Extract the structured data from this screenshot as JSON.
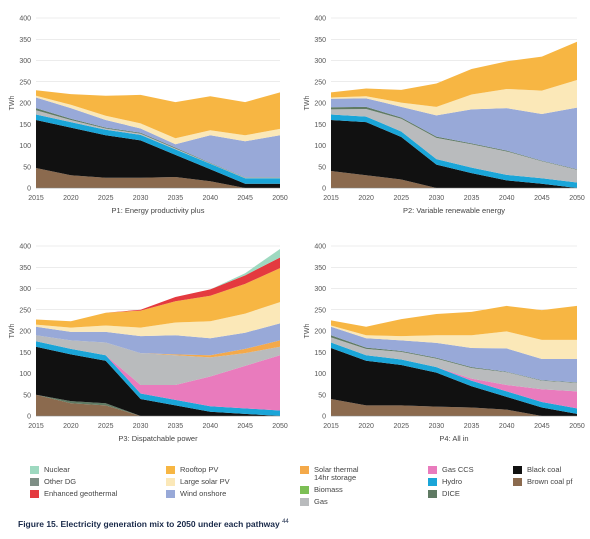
{
  "chart_data": [
    {
      "type": "area",
      "title": "P1: Energy productivity plus",
      "xlabel": "P1: Energy productivity plus",
      "ylabel": "TWh",
      "ylim": [
        0,
        400
      ],
      "yticks": [
        "0",
        "50",
        "100",
        "150",
        "200",
        "250",
        "300",
        "350",
        "400"
      ],
      "xticks": [
        "2015",
        "2020",
        "2025",
        "2030",
        "2035",
        "2040",
        "2045",
        "2050"
      ],
      "x": [
        2015,
        2020,
        2025,
        2030,
        2035,
        2040,
        2045,
        2050
      ],
      "series": [
        {
          "name": "Brown coal pf",
          "color": "#8b6a4e",
          "values": [
            47,
            30,
            24,
            24,
            26,
            16,
            0,
            0
          ]
        },
        {
          "name": "Black coal",
          "color": "#111111",
          "values": [
            113,
            112,
            100,
            88,
            52,
            28,
            10,
            10
          ]
        },
        {
          "name": "Hydro",
          "color": "#1aa5d8",
          "values": [
            13,
            13,
            13,
            13,
            13,
            13,
            13,
            13
          ]
        },
        {
          "name": "Gas",
          "color": "#b9bbbd",
          "values": [
            10,
            5,
            3,
            3,
            2,
            1,
            1,
            1
          ]
        },
        {
          "name": "DICE",
          "color": "#5f7a63",
          "values": [
            5,
            3,
            2,
            2,
            2,
            1,
            1,
            1
          ]
        },
        {
          "name": "Wind onshore",
          "color": "#98a9d8",
          "values": [
            25,
            25,
            18,
            10,
            8,
            65,
            85,
            99
          ]
        },
        {
          "name": "Large solar PV",
          "color": "#fbe8b8",
          "values": [
            4,
            8,
            10,
            12,
            14,
            12,
            14,
            15
          ]
        },
        {
          "name": "Rooftop PV",
          "color": "#f7b643",
          "values": [
            13,
            25,
            47,
            67,
            85,
            80,
            78,
            86
          ]
        }
      ]
    },
    {
      "type": "area",
      "title": "P2: Variable renewable energy",
      "xlabel": "P2: Variable renewable energy",
      "ylabel": "TWh",
      "ylim": [
        0,
        400
      ],
      "yticks": [
        "0",
        "50",
        "100",
        "150",
        "200",
        "250",
        "300",
        "350",
        "400"
      ],
      "xticks": [
        "2015",
        "2020",
        "2025",
        "2030",
        "2035",
        "2040",
        "2045",
        "2050"
      ],
      "x": [
        2015,
        2020,
        2025,
        2030,
        2035,
        2040,
        2045,
        2050
      ],
      "series": [
        {
          "name": "Brown coal pf",
          "color": "#8b6a4e",
          "values": [
            40,
            30,
            20,
            0,
            0,
            0,
            0,
            0
          ]
        },
        {
          "name": "Black coal",
          "color": "#111111",
          "values": [
            120,
            125,
            100,
            55,
            35,
            18,
            10,
            0
          ]
        },
        {
          "name": "Hydro",
          "color": "#1aa5d8",
          "values": [
            13,
            13,
            13,
            13,
            13,
            13,
            13,
            13
          ]
        },
        {
          "name": "Gas",
          "color": "#b9bbbd",
          "values": [
            12,
            18,
            30,
            50,
            55,
            55,
            40,
            30
          ]
        },
        {
          "name": "DICE",
          "color": "#5f7a63",
          "values": [
            5,
            5,
            3,
            3,
            2,
            2,
            1,
            1
          ]
        },
        {
          "name": "Wind onshore",
          "color": "#98a9d8",
          "values": [
            20,
            20,
            25,
            50,
            80,
            100,
            110,
            145
          ]
        },
        {
          "name": "Large solar PV",
          "color": "#fbe8b8",
          "values": [
            3,
            5,
            10,
            20,
            35,
            45,
            55,
            65
          ]
        },
        {
          "name": "Rooftop PV",
          "color": "#f7b643",
          "values": [
            12,
            18,
            30,
            55,
            60,
            65,
            80,
            90
          ]
        }
      ]
    },
    {
      "type": "area",
      "title": "P3: Dispatchable power",
      "xlabel": "P3: Dispatchable power",
      "ylabel": "TWh",
      "ylim": [
        0,
        400
      ],
      "yticks": [
        "0",
        "50",
        "100",
        "150",
        "200",
        "250",
        "300",
        "350",
        "400"
      ],
      "xticks": [
        "2015",
        "2020",
        "2025",
        "2030",
        "2035",
        "2040",
        "2045",
        "2050"
      ],
      "x": [
        2015,
        2020,
        2025,
        2030,
        2035,
        2040,
        2045,
        2050
      ],
      "series": [
        {
          "name": "Brown coal pf",
          "color": "#8b6a4e",
          "values": [
            50,
            30,
            25,
            0,
            0,
            0,
            0,
            0
          ]
        },
        {
          "name": "DICE",
          "color": "#5f7a63",
          "values": [
            0,
            5,
            5,
            0,
            0,
            0,
            0,
            0
          ]
        },
        {
          "name": "Black coal",
          "color": "#111111",
          "values": [
            113,
            110,
            100,
            40,
            25,
            10,
            5,
            0
          ]
        },
        {
          "name": "Hydro",
          "color": "#1aa5d8",
          "values": [
            13,
            13,
            13,
            13,
            13,
            13,
            13,
            13
          ]
        },
        {
          "name": "Gas CCS",
          "color": "#e97bbd",
          "values": [
            0,
            0,
            0,
            20,
            35,
            70,
            100,
            130
          ]
        },
        {
          "name": "Gas",
          "color": "#b9bbbd",
          "values": [
            14,
            20,
            30,
            75,
            70,
            45,
            30,
            20
          ]
        },
        {
          "name": "Solar thermal 14hr storage",
          "color": "#f4a94a",
          "values": [
            0,
            0,
            0,
            0,
            2,
            5,
            10,
            15
          ]
        },
        {
          "name": "Wind onshore",
          "color": "#98a9d8",
          "values": [
            20,
            20,
            25,
            40,
            45,
            40,
            38,
            40
          ]
        },
        {
          "name": "Large solar PV",
          "color": "#fbe8b8",
          "values": [
            5,
            10,
            15,
            20,
            30,
            40,
            45,
            50
          ]
        },
        {
          "name": "Rooftop PV",
          "color": "#f7b643",
          "values": [
            12,
            15,
            30,
            40,
            50,
            60,
            70,
            80
          ]
        },
        {
          "name": "Enhanced geothermal",
          "color": "#e43a3f",
          "values": [
            0,
            0,
            0,
            2,
            10,
            15,
            20,
            25
          ]
        },
        {
          "name": "Nuclear",
          "color": "#9ed9c0",
          "values": [
            0,
            0,
            0,
            0,
            0,
            0,
            5,
            20
          ]
        }
      ]
    },
    {
      "type": "area",
      "title": "P4: All in",
      "xlabel": "P4: All in",
      "ylabel": "TWh",
      "ylim": [
        0,
        400
      ],
      "yticks": [
        "0",
        "50",
        "100",
        "150",
        "200",
        "250",
        "300",
        "350",
        "400"
      ],
      "xticks": [
        "2015",
        "2020",
        "2025",
        "2030",
        "2035",
        "2040",
        "2045",
        "2050"
      ],
      "x": [
        2015,
        2020,
        2025,
        2030,
        2035,
        2040,
        2045,
        2050
      ],
      "series": [
        {
          "name": "Brown coal pf",
          "color": "#8b6a4e",
          "values": [
            40,
            25,
            25,
            22,
            20,
            15,
            0,
            0
          ]
        },
        {
          "name": "Black coal",
          "color": "#111111",
          "values": [
            120,
            105,
            95,
            80,
            50,
            30,
            20,
            5
          ]
        },
        {
          "name": "Hydro",
          "color": "#1aa5d8",
          "values": [
            13,
            13,
            13,
            13,
            13,
            13,
            13,
            13
          ]
        },
        {
          "name": "Gas CCS",
          "color": "#e97bbd",
          "values": [
            0,
            0,
            0,
            0,
            5,
            15,
            30,
            40
          ]
        },
        {
          "name": "Gas",
          "color": "#b9bbbd",
          "values": [
            12,
            15,
            18,
            20,
            25,
            30,
            20,
            20
          ]
        },
        {
          "name": "DICE",
          "color": "#5f7a63",
          "values": [
            5,
            3,
            2,
            2,
            2,
            1,
            1,
            1
          ]
        },
        {
          "name": "Wind onshore",
          "color": "#98a9d8",
          "values": [
            20,
            22,
            25,
            35,
            45,
            55,
            50,
            55
          ]
        },
        {
          "name": "Large solar PV",
          "color": "#fbe8b8",
          "values": [
            3,
            7,
            10,
            18,
            30,
            40,
            45,
            45
          ]
        },
        {
          "name": "Rooftop PV",
          "color": "#f7b643",
          "values": [
            12,
            20,
            40,
            50,
            55,
            60,
            70,
            80
          ]
        }
      ]
    }
  ],
  "legend": {
    "items": [
      {
        "label": "Nuclear",
        "color": "#9ed9c0"
      },
      {
        "label": "Other DG",
        "color": "#7e8f86"
      },
      {
        "label": "Enhanced geothermal",
        "color": "#e43a3f"
      },
      {
        "label": "Rooftop PV",
        "color": "#f7b643"
      },
      {
        "label": "Large solar PV",
        "color": "#fbe8b8"
      },
      {
        "label": "Wind onshore",
        "color": "#98a9d8"
      },
      {
        "label": "Solar thermal\n14hr storage",
        "color": "#f4a94a"
      },
      {
        "label": "Biomass",
        "color": "#7cbf55"
      },
      {
        "label": "Gas",
        "color": "#b9bbbd"
      },
      {
        "label": "Gas CCS",
        "color": "#e97bbd"
      },
      {
        "label": "Hydro",
        "color": "#1aa5d8"
      },
      {
        "label": "DICE",
        "color": "#5f7a63"
      },
      {
        "label": "Black coal",
        "color": "#111111"
      },
      {
        "label": "Brown coal pf",
        "color": "#8b6a4e"
      }
    ]
  },
  "caption": {
    "text": "Figure 15. Electricity generation mix to 2050 under each pathway",
    "note": "44"
  }
}
